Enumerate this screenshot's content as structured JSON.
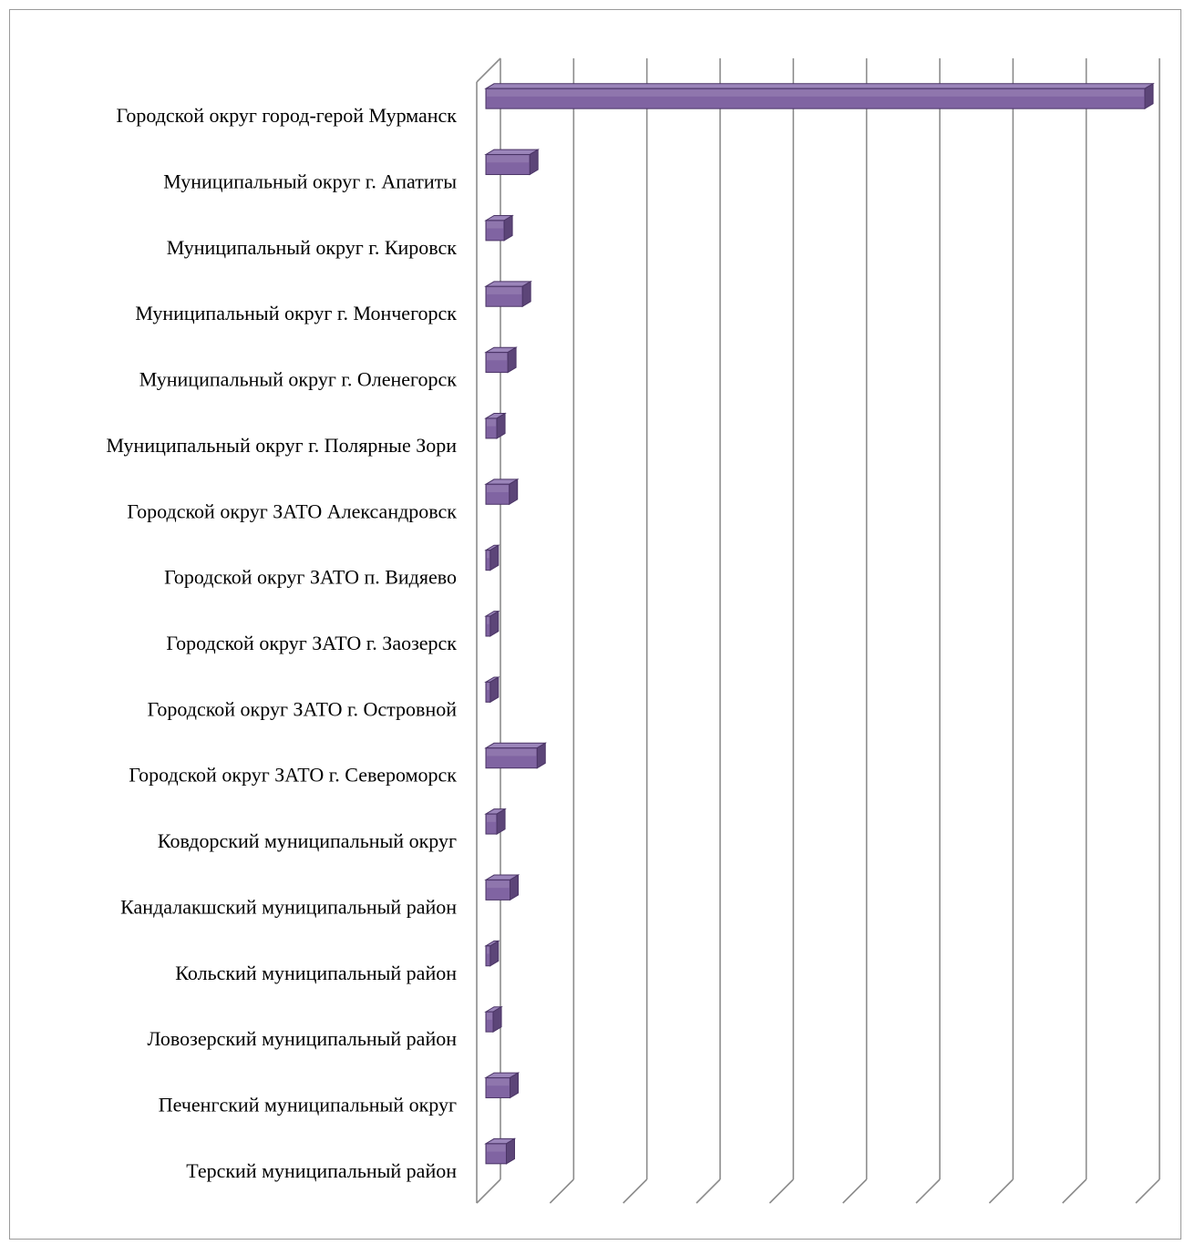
{
  "chart_data": {
    "type": "bar",
    "orientation": "horizontal",
    "style": "3d",
    "title": "",
    "xlabel": "",
    "ylabel": "",
    "categories": [
      "Городской округ город-герой Мурманск",
      "Муниципальный округ г. Апатиты",
      "Муниципальный округ г. Кировск",
      "Муниципальный округ г. Мончегорск",
      "Муниципальный округ г. Оленегорск",
      "Муниципальный округ г. Полярные Зори",
      "Городской округ ЗАТО Александровск",
      "Городской округ ЗАТО п. Видяево",
      "Городской округ ЗАТО г. Заозерск",
      "Городской округ ЗАТО г. Островной",
      "Городской округ ЗАТО г. Североморск",
      "Ковдорский муниципальный округ",
      "Кандалакшский муниципальный район",
      "Кольский муниципальный район",
      "Ловозерский муниципальный район",
      "Печенгский муниципальный округ",
      "Терский муниципальный район"
    ],
    "values": [
      9.0,
      0.6,
      0.25,
      0.5,
      0.3,
      0.15,
      0.32,
      0.06,
      0.06,
      0.06,
      0.7,
      0.15,
      0.33,
      0.06,
      0.1,
      0.33,
      0.28
    ],
    "xlim": [
      0,
      9
    ],
    "gridlines": 9,
    "tick_labels_shown": false,
    "legend": "none",
    "colors": {
      "bar_front": "#8064a2",
      "bar_top": "#9b85ba",
      "bar_side": "#5c4578",
      "bar_border": "#4b3566",
      "grid": "#8c8c8c"
    }
  }
}
